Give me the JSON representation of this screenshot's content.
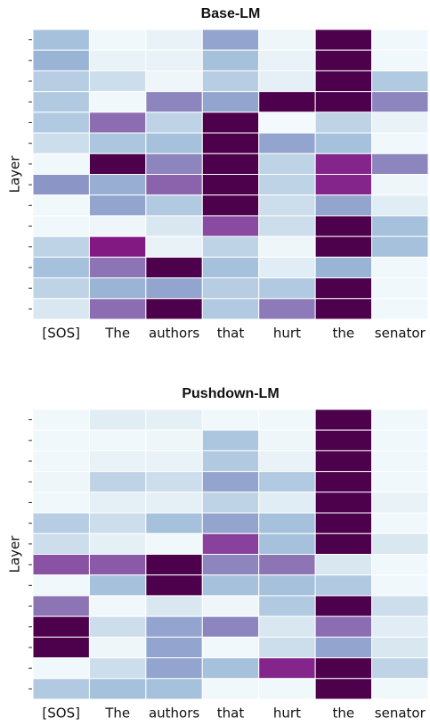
{
  "chart_data": [
    {
      "type": "heatmap",
      "title": "Base-LM",
      "ylabel": "Layer",
      "categories": [
        "[SOS]",
        "The",
        "authors",
        "that",
        "hurt",
        "the",
        "senator"
      ],
      "rows": [
        null,
        null,
        null,
        null,
        null,
        null,
        null,
        null,
        null,
        null,
        null,
        null,
        null,
        null
      ],
      "colormap": [
        "#f7fcfd",
        "#e0ecf4",
        "#bfd3e6",
        "#9ebcda",
        "#8c96c6",
        "#8c6bb1",
        "#88419d",
        "#810f7c",
        "#4d004b"
      ],
      "values": [
        [
          0.35,
          0.03,
          0.08,
          0.45,
          0.05,
          1.0,
          0.03
        ],
        [
          0.4,
          0.08,
          0.08,
          0.35,
          0.08,
          1.0,
          0.03
        ],
        [
          0.28,
          0.2,
          0.05,
          0.28,
          0.1,
          1.0,
          0.3
        ],
        [
          0.3,
          0.03,
          0.55,
          0.45,
          1.0,
          1.0,
          0.55
        ],
        [
          0.3,
          0.62,
          0.25,
          1.0,
          0.02,
          0.25,
          0.08
        ],
        [
          0.2,
          0.32,
          0.35,
          1.0,
          0.45,
          0.35,
          0.03
        ],
        [
          0.03,
          1.0,
          0.55,
          1.0,
          0.25,
          0.82,
          0.55
        ],
        [
          0.5,
          0.42,
          0.65,
          1.0,
          0.25,
          0.82,
          0.05
        ],
        [
          0.03,
          0.45,
          0.3,
          1.0,
          0.2,
          0.45,
          0.12
        ],
        [
          0.03,
          0.05,
          0.15,
          0.72,
          0.2,
          1.0,
          0.35
        ],
        [
          0.25,
          0.85,
          0.08,
          0.25,
          0.05,
          1.0,
          0.35
        ],
        [
          0.35,
          0.6,
          1.0,
          0.35,
          0.12,
          0.4,
          0.03
        ],
        [
          0.25,
          0.4,
          0.45,
          0.28,
          0.3,
          1.0,
          0.03
        ],
        [
          0.15,
          0.62,
          1.0,
          0.3,
          0.58,
          1.0,
          0.03
        ]
      ]
    },
    {
      "type": "heatmap",
      "title": "Pushdown-LM",
      "ylabel": "Layer",
      "categories": [
        "[SOS]",
        "The",
        "authors",
        "that",
        "hurt",
        "the",
        "senator"
      ],
      "rows": [
        null,
        null,
        null,
        null,
        null,
        null,
        null,
        null,
        null,
        null,
        null,
        null,
        null,
        null
      ],
      "colormap": [
        "#f7fcfd",
        "#e0ecf4",
        "#bfd3e6",
        "#9ebcda",
        "#8c96c6",
        "#8c6bb1",
        "#88419d",
        "#810f7c",
        "#4d004b"
      ],
      "values": [
        [
          0.03,
          0.12,
          0.1,
          0.03,
          0.03,
          1.0,
          0.03
        ],
        [
          0.03,
          0.03,
          0.05,
          0.32,
          0.05,
          1.0,
          0.03
        ],
        [
          0.03,
          0.08,
          0.08,
          0.3,
          0.08,
          1.0,
          0.03
        ],
        [
          0.05,
          0.25,
          0.2,
          0.45,
          0.3,
          1.0,
          0.03
        ],
        [
          0.03,
          0.1,
          0.1,
          0.25,
          0.12,
          1.0,
          0.08
        ],
        [
          0.28,
          0.2,
          0.35,
          0.45,
          0.35,
          1.0,
          0.03
        ],
        [
          0.2,
          0.1,
          0.03,
          0.75,
          0.35,
          1.0,
          0.15
        ],
        [
          0.7,
          0.68,
          1.0,
          0.55,
          0.6,
          0.15,
          0.03
        ],
        [
          0.03,
          0.35,
          1.0,
          0.35,
          0.35,
          0.3,
          0.03
        ],
        [
          0.6,
          0.03,
          0.15,
          0.05,
          0.3,
          1.0,
          0.2
        ],
        [
          1.0,
          0.2,
          0.45,
          0.55,
          0.15,
          0.62,
          0.12
        ],
        [
          1.0,
          0.05,
          0.45,
          0.03,
          0.2,
          0.45,
          0.15
        ],
        [
          0.03,
          0.2,
          0.45,
          0.35,
          0.82,
          1.0,
          0.25
        ],
        [
          0.3,
          0.35,
          0.35,
          0.03,
          0.03,
          1.0,
          0.03
        ]
      ]
    }
  ]
}
